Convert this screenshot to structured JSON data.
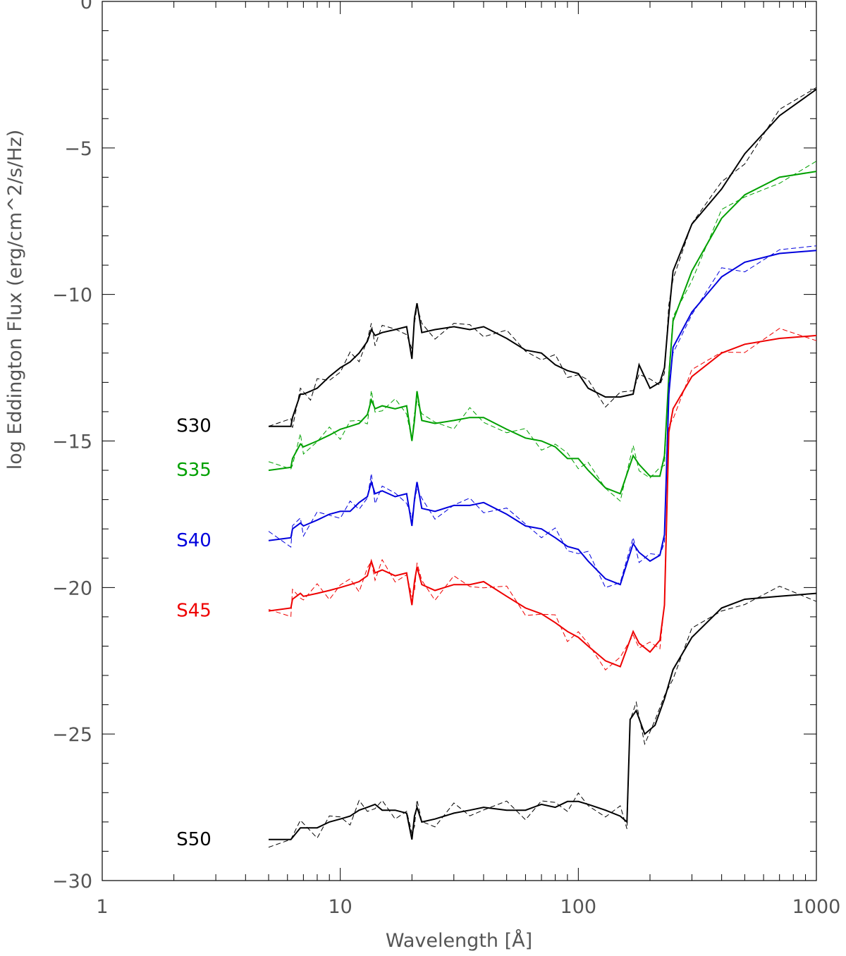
{
  "chart_data": {
    "type": "line",
    "title": "",
    "xlabel": "Wavelength [Å]",
    "ylabel": "log Eddington Flux (erg/cm^2/s/Hz)",
    "xscale": "log",
    "xlim": [
      1,
      1000
    ],
    "ylim": [
      -30,
      0
    ],
    "xticks": [
      1,
      10,
      100,
      1000
    ],
    "xtick_labels": [
      "1",
      "10",
      "100",
      "1000"
    ],
    "yticks": [
      0,
      -5,
      -10,
      -15,
      -20,
      -25,
      -30
    ],
    "ytick_labels": [
      "0",
      "−5",
      "−10",
      "−15",
      "−20",
      "−25",
      "−30"
    ],
    "grid": false,
    "legend": "inline labels on left",
    "series": [
      {
        "name": "S30",
        "color": "#000000",
        "x": [
          5,
          6.2,
          6.3,
          6.8,
          7,
          7.5,
          8,
          9,
          10,
          11,
          12,
          13,
          13.5,
          14,
          15,
          17,
          19,
          20,
          20.5,
          21,
          22,
          25,
          30,
          35,
          40,
          50,
          60,
          70,
          80,
          90,
          100,
          110,
          130,
          150,
          170,
          180,
          200,
          220,
          230,
          240,
          250,
          300,
          400,
          500,
          700,
          1000
        ],
        "y": [
          -14.5,
          -14.5,
          -14.2,
          -13.4,
          -13.4,
          -13.3,
          -13.2,
          -12.8,
          -12.5,
          -12.3,
          -12.0,
          -11.6,
          -11.2,
          -11.4,
          -11.3,
          -11.2,
          -11.1,
          -12.2,
          -10.8,
          -10.3,
          -11.3,
          -11.2,
          -11.1,
          -11.2,
          -11.1,
          -11.5,
          -11.9,
          -12.0,
          -12.4,
          -12.6,
          -12.7,
          -13.2,
          -13.5,
          -13.5,
          -13.4,
          -12.4,
          -13.2,
          -13.0,
          -12.5,
          -10.7,
          -9.2,
          -7.6,
          -6.4,
          -5.2,
          -3.9,
          -3.0
        ]
      },
      {
        "name": "S35",
        "color": "#00a000",
        "x": [
          5,
          6.2,
          6.3,
          6.8,
          7,
          8,
          9,
          10,
          11,
          12,
          13,
          13.5,
          14,
          15,
          17,
          19,
          20,
          20.5,
          21,
          22,
          25,
          30,
          35,
          40,
          50,
          60,
          70,
          80,
          90,
          100,
          110,
          130,
          150,
          170,
          180,
          200,
          220,
          230,
          240,
          250,
          300,
          400,
          500,
          700,
          1000
        ],
        "y": [
          -16.0,
          -15.9,
          -15.6,
          -15.1,
          -15.2,
          -15.0,
          -14.8,
          -14.6,
          -14.5,
          -14.4,
          -14.1,
          -13.6,
          -13.9,
          -13.8,
          -13.9,
          -13.8,
          -15.0,
          -14.3,
          -13.3,
          -14.3,
          -14.4,
          -14.3,
          -14.2,
          -14.2,
          -14.6,
          -14.9,
          -15.0,
          -15.2,
          -15.6,
          -15.6,
          -16.0,
          -16.6,
          -16.8,
          -15.5,
          -15.8,
          -16.2,
          -16.2,
          -15.5,
          -12.8,
          -10.9,
          -9.2,
          -7.4,
          -6.6,
          -6.0,
          -5.8
        ]
      },
      {
        "name": "S40",
        "color": "#0000dd",
        "x": [
          5,
          6.2,
          6.3,
          6.8,
          7,
          8,
          9,
          10,
          11,
          12,
          13,
          13.5,
          14,
          15,
          17,
          19,
          20,
          20.5,
          21,
          22,
          25,
          30,
          35,
          40,
          50,
          60,
          70,
          80,
          90,
          100,
          110,
          130,
          150,
          170,
          180,
          200,
          220,
          230,
          240,
          250,
          300,
          400,
          500,
          700,
          1000
        ],
        "y": [
          -18.4,
          -18.3,
          -18.0,
          -17.8,
          -17.9,
          -17.7,
          -17.5,
          -17.4,
          -17.4,
          -17.1,
          -16.9,
          -16.4,
          -16.8,
          -16.7,
          -16.9,
          -16.8,
          -17.9,
          -17.0,
          -16.4,
          -17.3,
          -17.4,
          -17.2,
          -17.2,
          -17.1,
          -17.5,
          -17.9,
          -18.0,
          -18.3,
          -18.6,
          -18.7,
          -19.1,
          -19.7,
          -19.9,
          -18.5,
          -18.8,
          -19.1,
          -18.9,
          -18.2,
          -13.4,
          -11.8,
          -10.6,
          -9.4,
          -8.9,
          -8.6,
          -8.5
        ]
      },
      {
        "name": "S45",
        "color": "#ee0000",
        "x": [
          5,
          6.2,
          6.3,
          6.8,
          7,
          8,
          9,
          10,
          11,
          12,
          13,
          13.5,
          14,
          15,
          17,
          19,
          20,
          20.5,
          21,
          22,
          25,
          30,
          35,
          40,
          50,
          60,
          70,
          80,
          90,
          100,
          110,
          130,
          150,
          170,
          180,
          200,
          220,
          230,
          240,
          250,
          300,
          400,
          500,
          700,
          1000
        ],
        "y": [
          -20.8,
          -20.7,
          -20.4,
          -20.2,
          -20.3,
          -20.2,
          -20.1,
          -20.0,
          -19.9,
          -19.8,
          -19.6,
          -19.1,
          -19.5,
          -19.4,
          -19.6,
          -19.5,
          -20.6,
          -19.8,
          -19.3,
          -19.9,
          -20.1,
          -19.9,
          -19.9,
          -19.8,
          -20.3,
          -20.7,
          -20.9,
          -21.2,
          -21.5,
          -21.7,
          -22.0,
          -22.5,
          -22.7,
          -21.5,
          -21.9,
          -22.2,
          -21.8,
          -20.6,
          -14.7,
          -13.9,
          -12.8,
          -12.0,
          -11.7,
          -11.5,
          -11.4
        ]
      },
      {
        "name": "S50",
        "color": "#000000",
        "x": [
          5,
          6.2,
          6.8,
          8,
          9,
          10,
          11,
          12,
          13,
          14,
          15,
          17,
          19,
          20,
          20.5,
          21,
          22,
          25,
          30,
          35,
          40,
          50,
          60,
          70,
          80,
          90,
          100,
          110,
          130,
          150,
          160,
          165,
          175,
          190,
          210,
          230,
          250,
          300,
          400,
          500,
          700,
          1000
        ],
        "y": [
          -28.6,
          -28.6,
          -28.2,
          -28.2,
          -28.0,
          -27.9,
          -27.8,
          -27.6,
          -27.5,
          -27.4,
          -27.6,
          -27.6,
          -27.7,
          -28.6,
          -27.8,
          -27.5,
          -28.0,
          -27.9,
          -27.7,
          -27.6,
          -27.5,
          -27.6,
          -27.6,
          -27.4,
          -27.5,
          -27.3,
          -27.3,
          -27.4,
          -27.6,
          -27.8,
          -28.0,
          -24.5,
          -24.2,
          -25.0,
          -24.7,
          -23.8,
          -22.8,
          -21.7,
          -20.7,
          -20.4,
          -20.3,
          -20.2
        ]
      }
    ]
  }
}
